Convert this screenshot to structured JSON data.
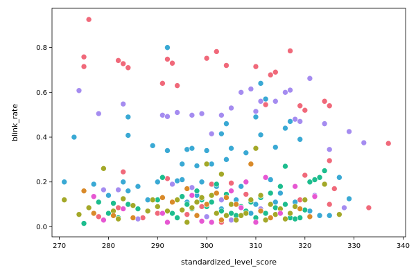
{
  "chart_data": {
    "type": "scatter",
    "title": "",
    "xlabel": "standardized_level_score",
    "ylabel": "blink_rate",
    "xlim": [
      268.5,
      340.5
    ],
    "ylim": [
      -0.045,
      0.975
    ],
    "xticks": [
      270,
      280,
      290,
      300,
      310,
      320,
      330,
      340
    ],
    "yticks": [
      0.0,
      0.2,
      0.4,
      0.6,
      0.8
    ],
    "xtick_labels": [
      "270",
      "280",
      "290",
      "300",
      "310",
      "320",
      "330",
      "340"
    ],
    "ytick_labels": [
      "0.0",
      "0.2",
      "0.4",
      "0.6",
      "0.8"
    ],
    "legend": "none",
    "grid": false,
    "series": [
      {
        "color": "#f0697a",
        "points": [
          [
            276,
            0.925
          ],
          [
            275,
            0.758
          ],
          [
            275,
            0.715
          ],
          [
            282,
            0.742
          ],
          [
            283,
            0.728
          ],
          [
            284,
            0.71
          ],
          [
            292,
            0.748
          ],
          [
            293,
            0.73
          ],
          [
            291,
            0.64
          ],
          [
            294,
            0.63
          ],
          [
            300,
            0.752
          ],
          [
            302,
            0.782
          ],
          [
            304,
            0.72
          ],
          [
            310,
            0.715
          ],
          [
            313,
            0.678
          ],
          [
            314,
            0.69
          ],
          [
            317,
            0.785
          ],
          [
            312,
            0.545
          ],
          [
            319,
            0.54
          ],
          [
            320,
            0.52
          ],
          [
            324,
            0.56
          ],
          [
            325,
            0.54
          ],
          [
            337,
            0.372
          ],
          [
            305,
            0.195
          ],
          [
            283,
            0.245
          ],
          [
            292,
            0.215
          ],
          [
            301,
            0.19
          ],
          [
            315,
            0.18
          ],
          [
            320,
            0.23
          ],
          [
            326,
            0.17
          ],
          [
            278,
            0.045
          ],
          [
            282,
            0.085
          ],
          [
            296,
            0.055
          ],
          [
            303,
            0.02
          ],
          [
            314,
            0.085
          ],
          [
            319,
            0.12
          ],
          [
            325,
            0.1
          ],
          [
            333,
            0.085
          ],
          [
            287,
            0.04
          ],
          [
            290,
            0.06
          ],
          [
            299,
            0.09
          ],
          [
            308,
            0.145
          ],
          [
            325,
            0.295
          ]
        ]
      },
      {
        "color": "#a58cf0",
        "points": [
          [
            274,
            0.608
          ],
          [
            278,
            0.505
          ],
          [
            283,
            0.548
          ],
          [
            291,
            0.498
          ],
          [
            292,
            0.492
          ],
          [
            294,
            0.51
          ],
          [
            297,
            0.498
          ],
          [
            299,
            0.505
          ],
          [
            301,
            0.415
          ],
          [
            303,
            0.498
          ],
          [
            305,
            0.53
          ],
          [
            307,
            0.6
          ],
          [
            309,
            0.615
          ],
          [
            310,
            0.515
          ],
          [
            311,
            0.56
          ],
          [
            314,
            0.56
          ],
          [
            316,
            0.6
          ],
          [
            317,
            0.61
          ],
          [
            318,
            0.48
          ],
          [
            319,
            0.47
          ],
          [
            321,
            0.662
          ],
          [
            324,
            0.46
          ],
          [
            329,
            0.425
          ],
          [
            332,
            0.375
          ],
          [
            325,
            0.345
          ],
          [
            279,
            0.165
          ],
          [
            293,
            0.19
          ],
          [
            297,
            0.175
          ],
          [
            303,
            0.12
          ],
          [
            311,
            0.08
          ],
          [
            317,
            0.06
          ],
          [
            322,
            0.14
          ],
          [
            328,
            0.085
          ],
          [
            286,
            0.035
          ],
          [
            300,
            0.045
          ],
          [
            312,
            0.03
          ],
          [
            305,
            0.03
          ],
          [
            282,
            0.165
          ]
        ]
      },
      {
        "color": "#3aa9d4",
        "points": [
          [
            273,
            0.4
          ],
          [
            271,
            0.2
          ],
          [
            277,
            0.19
          ],
          [
            280,
            0.14
          ],
          [
            284,
            0.16
          ],
          [
            284,
            0.49
          ],
          [
            284,
            0.408
          ],
          [
            289,
            0.362
          ],
          [
            290,
            0.2
          ],
          [
            292,
            0.34
          ],
          [
            292,
            0.8
          ],
          [
            294,
            0.205
          ],
          [
            295,
            0.28
          ],
          [
            296,
            0.345
          ],
          [
            297,
            0.35
          ],
          [
            298,
            0.272
          ],
          [
            300,
            0.34
          ],
          [
            301,
            0.28
          ],
          [
            303,
            0.415
          ],
          [
            304,
            0.46
          ],
          [
            305,
            0.35
          ],
          [
            304,
            0.3
          ],
          [
            308,
            0.33
          ],
          [
            310,
            0.49
          ],
          [
            311,
            0.64
          ],
          [
            311,
            0.41
          ],
          [
            312,
            0.57
          ],
          [
            314,
            0.355
          ],
          [
            316,
            0.44
          ],
          [
            317,
            0.47
          ],
          [
            319,
            0.39
          ],
          [
            313,
            0.21
          ],
          [
            315,
            0.15
          ],
          [
            318,
            0.11
          ],
          [
            321,
            0.07
          ],
          [
            323,
            0.05
          ],
          [
            325,
            0.05
          ],
          [
            327,
            0.22
          ],
          [
            329,
            0.125
          ],
          [
            306,
            0.12
          ],
          [
            302,
            0.18
          ],
          [
            298,
            0.14
          ],
          [
            295,
            0.21
          ],
          [
            288,
            0.12
          ],
          [
            283,
            0.2
          ],
          [
            286,
            0.18
          ],
          [
            299,
            0.2
          ],
          [
            307,
            0.18
          ],
          [
            310,
            0.1
          ],
          [
            314,
            0.11
          ],
          [
            303,
            0.08
          ],
          [
            296,
            0.11
          ],
          [
            309,
            0.06
          ]
        ]
      },
      {
        "color": "#1dbd8e",
        "points": [
          [
            275,
            0.015
          ],
          [
            278,
            0.11
          ],
          [
            281,
            0.105
          ],
          [
            282,
            0.04
          ],
          [
            291,
            0.22
          ],
          [
            293,
            0.06
          ],
          [
            295,
            0.135
          ],
          [
            297,
            0.08
          ],
          [
            299,
            0.12
          ],
          [
            301,
            0.11
          ],
          [
            303,
            0.07
          ],
          [
            305,
            0.06
          ],
          [
            307,
            0.09
          ],
          [
            309,
            0.11
          ],
          [
            311,
            0.13
          ],
          [
            313,
            0.15
          ],
          [
            315,
            0.18
          ],
          [
            317,
            0.04
          ],
          [
            319,
            0.04
          ],
          [
            320,
            0.075
          ],
          [
            321,
            0.2
          ],
          [
            322,
            0.21
          ],
          [
            323,
            0.22
          ],
          [
            324,
            0.25
          ],
          [
            312,
            0.06
          ],
          [
            314,
            0.085
          ],
          [
            316,
            0.1
          ],
          [
            318,
            0.035
          ],
          [
            306,
            0.05
          ],
          [
            304,
            0.145
          ],
          [
            300,
            0.09
          ],
          [
            296,
            0.1
          ],
          [
            294,
            0.04
          ],
          [
            288,
            0.07
          ],
          [
            286,
            0.08
          ],
          [
            280,
            0.06
          ],
          [
            284,
            0.1
          ],
          [
            290,
            0.12
          ],
          [
            298,
            0.16
          ],
          [
            302,
            0.19
          ],
          [
            310,
            0.04
          ],
          [
            308,
            0.07
          ],
          [
            316,
            0.27
          ]
        ]
      },
      {
        "color": "#a3a828",
        "points": [
          [
            271,
            0.12
          ],
          [
            274,
            0.055
          ],
          [
            276,
            0.085
          ],
          [
            279,
            0.26
          ],
          [
            281,
            0.07
          ],
          [
            282,
            0.035
          ],
          [
            283,
            0.125
          ],
          [
            285,
            0.095
          ],
          [
            288,
            0.07
          ],
          [
            290,
            0.09
          ],
          [
            292,
            0.07
          ],
          [
            294,
            0.12
          ],
          [
            296,
            0.02
          ],
          [
            297,
            0.085
          ],
          [
            298,
            0.11
          ],
          [
            299,
            0.13
          ],
          [
            300,
            0.28
          ],
          [
            301,
            0.14
          ],
          [
            302,
            0.06
          ],
          [
            303,
            0.235
          ],
          [
            305,
            0.1
          ],
          [
            306,
            0.03
          ],
          [
            307,
            0.05
          ],
          [
            308,
            0.06
          ],
          [
            309,
            0.12
          ],
          [
            310,
            0.35
          ],
          [
            311,
            0.14
          ],
          [
            312,
            0.03
          ],
          [
            313,
            0.1
          ],
          [
            314,
            0.055
          ],
          [
            315,
            0.08
          ],
          [
            316,
            0.035
          ],
          [
            317,
            0.06
          ],
          [
            318,
            0.09
          ],
          [
            320,
            0.12
          ],
          [
            324,
            0.19
          ],
          [
            327,
            0.055
          ],
          [
            295,
            0.075
          ],
          [
            289,
            0.12
          ],
          [
            304,
            0.05
          ]
        ]
      },
      {
        "color": "#d98a2a",
        "points": [
          [
            275,
            0.16
          ],
          [
            277,
            0.06
          ],
          [
            281,
            0.05
          ],
          [
            285,
            0.04
          ],
          [
            291,
            0.13
          ],
          [
            293,
            0.11
          ],
          [
            296,
            0.17
          ],
          [
            298,
            0.05
          ],
          [
            300,
            0.1
          ],
          [
            302,
            0.15
          ],
          [
            304,
            0.13
          ],
          [
            306,
            0.1
          ],
          [
            309,
            0.28
          ],
          [
            311,
            0.07
          ],
          [
            313,
            0.04
          ],
          [
            319,
            0.08
          ],
          [
            321,
            0.045
          ],
          [
            303,
            0.03
          ]
        ]
      },
      {
        "color": "#e657d2",
        "points": [
          [
            277,
            0.135
          ],
          [
            279,
            0.03
          ],
          [
            283,
            0.08
          ],
          [
            291,
            0.06
          ],
          [
            292,
            0.02
          ],
          [
            297,
            0.14
          ],
          [
            301,
            0.02
          ],
          [
            305,
            0.16
          ],
          [
            308,
            0.2
          ],
          [
            312,
            0.22
          ],
          [
            315,
            0.06
          ],
          [
            318,
            0.18
          ],
          [
            322,
            0.135
          ],
          [
            299,
            0.025
          ],
          [
            307,
            0.085
          ],
          [
            310,
            0.02
          ]
        ]
      }
    ]
  }
}
